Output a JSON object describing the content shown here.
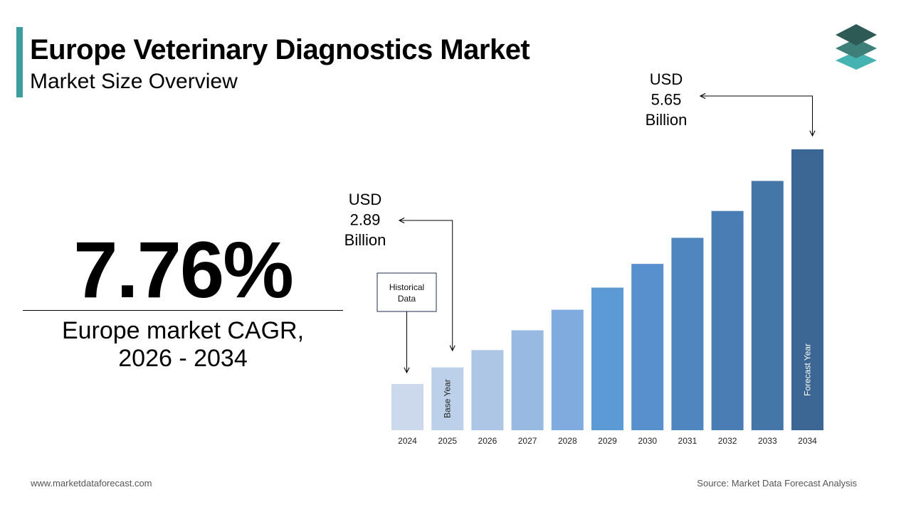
{
  "header": {
    "title": "Europe Veterinary Diagnostics Market",
    "subtitle": "Market Size Overview"
  },
  "cagr": {
    "value": "7.76%",
    "label_line1": "Europe market CAGR,",
    "label_line2": "2026 - 2034"
  },
  "chart_data": {
    "type": "bar",
    "categories": [
      "2024",
      "2025",
      "2026",
      "2027",
      "2028",
      "2029",
      "2030",
      "2031",
      "2032",
      "2033",
      "2034"
    ],
    "values": [
      2.68,
      2.89,
      3.11,
      3.36,
      3.62,
      3.9,
      4.2,
      4.53,
      4.87,
      5.25,
      5.65
    ],
    "colors": [
      "#ccd9ec",
      "#bdd0ea",
      "#aec6e6",
      "#98b9e1",
      "#7fabdf",
      "#5c9ad6",
      "#5790cc",
      "#4f86c0",
      "#4a7db4",
      "#4576a8",
      "#3c6693"
    ],
    "unit": "USD Billion",
    "bar_labels": {
      "1": "Base Year",
      "10": "Forecast Year"
    },
    "callouts": [
      {
        "category_index": 1,
        "lines": [
          "USD",
          "2.89",
          "Billion"
        ]
      },
      {
        "category_index": 10,
        "lines": [
          "USD",
          "5.65",
          "Billion"
        ]
      }
    ],
    "historical_label": [
      "Historical",
      "Data"
    ],
    "grid": false,
    "legend": "none"
  },
  "footer": {
    "left": "www.marketdataforecast.com",
    "right": "Source: Market Data Forecast Analysis"
  },
  "logo": {
    "icon": "stacked-layers-icon",
    "colors": [
      "#2e5a56",
      "#3f7f79",
      "#46b3b3"
    ]
  }
}
